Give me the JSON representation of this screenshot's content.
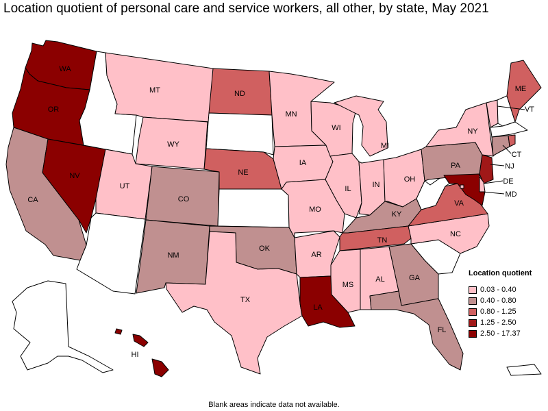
{
  "title": "Location quotient of personal care and service workers, all other, by state, May 2021",
  "footnote": "Blank areas indicate data not available.",
  "legend": {
    "title": "Location quotient",
    "items": [
      {
        "label": "0.03 - 0.40",
        "color": "#ffc0c8"
      },
      {
        "label": "0.40 - 0.80",
        "color": "#c09090"
      },
      {
        "label": "0.80 - 1.25",
        "color": "#d06060"
      },
      {
        "label": "1.25 - 2.50",
        "color": "#a01818"
      },
      {
        "label": "2.50 - 17.37",
        "color": "#8b0000"
      }
    ]
  },
  "na_color": "#ffffff",
  "states": {
    "WA": {
      "label": "WA",
      "bin": 4
    },
    "OR": {
      "label": "OR",
      "bin": 4
    },
    "CA": {
      "label": "CA",
      "bin": 1
    },
    "NV": {
      "label": "NV",
      "bin": 4
    },
    "ID": {
      "label": "",
      "bin": null
    },
    "MT": {
      "label": "MT",
      "bin": 0
    },
    "WY": {
      "label": "WY",
      "bin": 0
    },
    "UT": {
      "label": "UT",
      "bin": 0
    },
    "AZ": {
      "label": "",
      "bin": null
    },
    "CO": {
      "label": "CO",
      "bin": 1
    },
    "NM": {
      "label": "NM",
      "bin": 1
    },
    "ND": {
      "label": "ND",
      "bin": 2
    },
    "SD": {
      "label": "",
      "bin": null
    },
    "NE": {
      "label": "NE",
      "bin": 2
    },
    "KS": {
      "label": "",
      "bin": null
    },
    "OK": {
      "label": "OK",
      "bin": 1
    },
    "TX": {
      "label": "TX",
      "bin": 0
    },
    "MN": {
      "label": "MN",
      "bin": 0
    },
    "IA": {
      "label": "IA",
      "bin": 0
    },
    "MO": {
      "label": "MO",
      "bin": 0
    },
    "AR": {
      "label": "AR",
      "bin": 0
    },
    "LA": {
      "label": "LA",
      "bin": 4
    },
    "WI": {
      "label": "WI",
      "bin": 0
    },
    "IL": {
      "label": "IL",
      "bin": 0
    },
    "MI": {
      "label": "MI",
      "bin": 0
    },
    "IN": {
      "label": "IN",
      "bin": 0
    },
    "OH": {
      "label": "OH",
      "bin": 0
    },
    "KY": {
      "label": "KY",
      "bin": 1
    },
    "TN": {
      "label": "TN",
      "bin": 2
    },
    "MS": {
      "label": "MS",
      "bin": 0
    },
    "AL": {
      "label": "AL",
      "bin": 0
    },
    "GA": {
      "label": "GA",
      "bin": 1
    },
    "FL": {
      "label": "FL",
      "bin": 1
    },
    "SC": {
      "label": "",
      "bin": null
    },
    "NC": {
      "label": "NC",
      "bin": 0
    },
    "VA": {
      "label": "VA",
      "bin": 2
    },
    "WV": {
      "label": "",
      "bin": null
    },
    "PA": {
      "label": "PA",
      "bin": 1
    },
    "NY": {
      "label": "NY",
      "bin": 0
    },
    "VT": {
      "label": "VT",
      "bin": 0
    },
    "NH": {
      "label": "",
      "bin": null
    },
    "ME": {
      "label": "ME",
      "bin": 2
    },
    "MA": {
      "label": "",
      "bin": null
    },
    "CT": {
      "label": "CT",
      "bin": 1
    },
    "RI": {
      "label": "",
      "bin": 2
    },
    "NJ": {
      "label": "NJ",
      "bin": 3
    },
    "DE": {
      "label": "DE",
      "bin": 0
    },
    "MD": {
      "label": "MD",
      "bin": 4
    },
    "DC": {
      "label": "",
      "bin": 0
    },
    "AK": {
      "label": "",
      "bin": null
    },
    "HI": {
      "label": "HI",
      "bin": 4
    },
    "PR": {
      "label": "",
      "bin": null
    }
  }
}
